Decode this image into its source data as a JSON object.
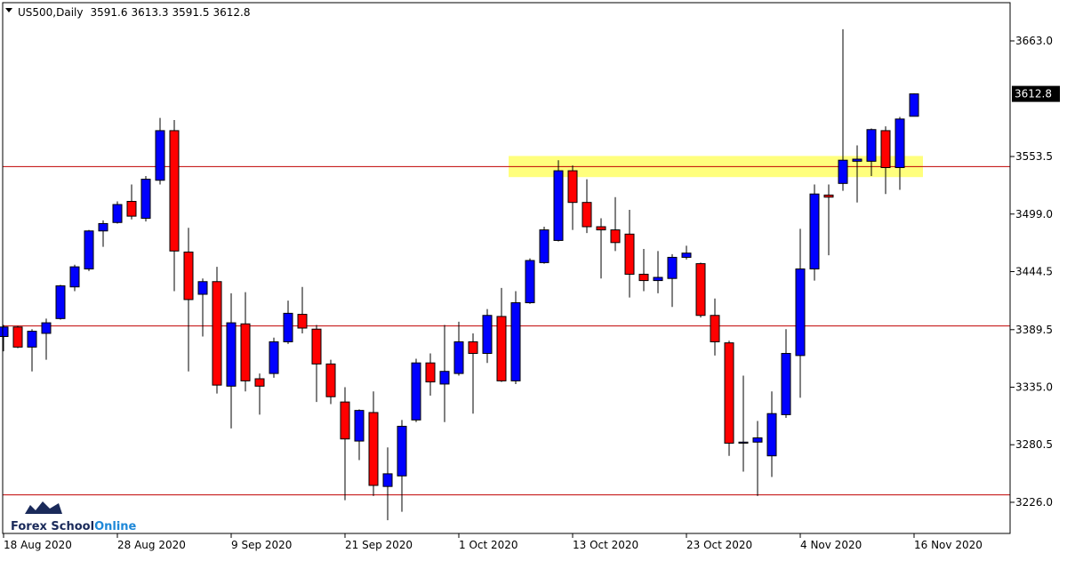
{
  "chart_data": {
    "type": "candlestick",
    "title": "US500,Daily",
    "categories": [
      "18 Aug 2020",
      null,
      null,
      null,
      null,
      null,
      null,
      null,
      "28 Aug 2020",
      null,
      null,
      null,
      null,
      null,
      null,
      null,
      "9 Sep 2020",
      null,
      null,
      null,
      null,
      null,
      null,
      null,
      "21 Sep 2020",
      null,
      null,
      null,
      null,
      null,
      null,
      null,
      "1 Oct 2020",
      null,
      null,
      null,
      null,
      null,
      null,
      null,
      "13 Oct 2020",
      null,
      null,
      null,
      null,
      null,
      null,
      null,
      "23 Oct 2020",
      null,
      null,
      null,
      null,
      null,
      null,
      null,
      "4 Nov 2020",
      null,
      null,
      null,
      null,
      null,
      null,
      null,
      "16 Nov 2020"
    ],
    "open": [
      3383,
      3392,
      3373,
      3386,
      3400,
      3430,
      3447,
      3483,
      3491,
      3511,
      3495,
      3531,
      3578,
      3463,
      3423,
      3435,
      3336,
      3395,
      3343,
      3348,
      3378,
      3404,
      3390,
      3357,
      3321,
      3284,
      3311,
      3241,
      3251,
      3304,
      3358,
      3338,
      3348,
      3378,
      3367,
      3402,
      3341,
      3415,
      3453,
      3474,
      3540,
      3510,
      3487,
      3484,
      3480,
      3442,
      3436,
      3438,
      3458,
      3452,
      3403,
      3377,
      3282,
      3283,
      3270,
      3309,
      3365,
      3447,
      3517,
      3528,
      3549,
      3549,
      3578,
      3543,
      3591.6
    ],
    "high": [
      3394,
      3393,
      3390,
      3400,
      3432,
      3451,
      3484,
      3493,
      3511,
      3527,
      3535,
      3590,
      3588,
      3486,
      3438,
      3449,
      3424,
      3425,
      3348,
      3382,
      3417,
      3430,
      3394,
      3361,
      3335,
      3314,
      3331,
      3278,
      3304,
      3362,
      3367,
      3394,
      3397,
      3386,
      3409,
      3429,
      3426,
      3457,
      3487,
      3550,
      3545,
      3532,
      3495,
      3515,
      3503,
      3466,
      3464,
      3461,
      3469,
      3453,
      3419,
      3379,
      3346,
      3303,
      3331,
      3390,
      3485,
      3527,
      3527,
      3674,
      3564,
      3580,
      3582,
      3591,
      3613.3
    ],
    "low": [
      3369,
      3372,
      3350,
      3361,
      3399,
      3426,
      3445,
      3468,
      3490,
      3494,
      3492,
      3527,
      3426,
      3350,
      3383,
      3329,
      3296,
      3331,
      3309,
      3344,
      3376,
      3386,
      3321,
      3319,
      3228,
      3266,
      3232,
      3209,
      3217,
      3302,
      3327,
      3302,
      3346,
      3310,
      3358,
      3340,
      3338,
      3414,
      3452,
      3473,
      3484,
      3481,
      3438,
      3464,
      3420,
      3426,
      3424,
      3411,
      3456,
      3401,
      3365,
      3270,
      3255,
      3232,
      3250,
      3306,
      3325,
      3436,
      3460,
      3521,
      3510,
      3535,
      3518,
      3522,
      3591.5
    ],
    "close": [
      3392,
      3373,
      3388,
      3396,
      3431,
      3449,
      3483,
      3490,
      3508,
      3497,
      3532,
      3578,
      3464,
      3418,
      3435,
      3337,
      3396,
      3341,
      3336,
      3378,
      3405,
      3391,
      3357,
      3326,
      3286,
      3313,
      3242,
      3253,
      3298,
      3358,
      3340,
      3350,
      3378,
      3367,
      3403,
      3341,
      3415,
      3455,
      3484,
      3540,
      3510,
      3487,
      3484,
      3472,
      3442,
      3436,
      3439,
      3458,
      3462,
      3403,
      3378,
      3282,
      3283,
      3287,
      3310,
      3367,
      3447,
      3518,
      3515,
      3550,
      3551,
      3579,
      3543,
      3589,
      3612.8
    ],
    "up_color": "#0000ff",
    "down_color": "#ff0000",
    "ylim": [
      3196.5,
      3699.2
    ],
    "yticks": [
      {
        "value": 3663,
        "label": "3663.0"
      },
      3553.5,
      {
        "value": 3499,
        "label": "3499.0"
      },
      3444.5,
      3389.5,
      {
        "value": 3335,
        "label": "3335.0"
      },
      3280.5,
      {
        "value": 3226,
        "label": "3226.0"
      }
    ],
    "levels": [
      3544,
      3393,
      3233
    ],
    "level_color": "#c00000",
    "zone": [
      3534,
      3554
    ],
    "zone_color": "#ffff66",
    "watermark": {
      "main": "Forex School",
      "accent": "Online"
    }
  }
}
